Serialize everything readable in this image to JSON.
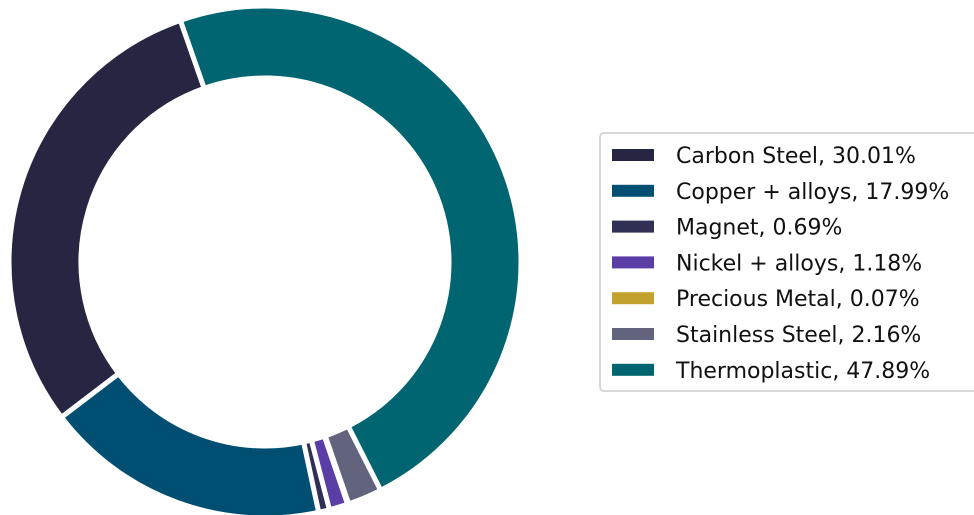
{
  "chart_data": {
    "type": "pie",
    "subtype": "donut",
    "title": "",
    "legend_position": "right",
    "slices": [
      {
        "label": "Carbon Steel, 30.01%",
        "value": 30.01,
        "color": "#262643"
      },
      {
        "label": "Copper + alloys, 17.99%",
        "value": 17.99,
        "color": "#004f73"
      },
      {
        "label": "Magnet, 0.69%",
        "value": 0.69,
        "color": "#303055"
      },
      {
        "label": "Nickel + alloys, 1.18%",
        "value": 1.18,
        "color": "#5a3ea6"
      },
      {
        "label": "Precious Metal, 0.07%",
        "value": 0.07,
        "color": "#c3a12f"
      },
      {
        "label": "Stainless Steel, 2.16%",
        "value": 2.16,
        "color": "#62637d"
      },
      {
        "label": "Thermoplastic, 47.89%",
        "value": 47.89,
        "color": "#006570"
      }
    ]
  }
}
